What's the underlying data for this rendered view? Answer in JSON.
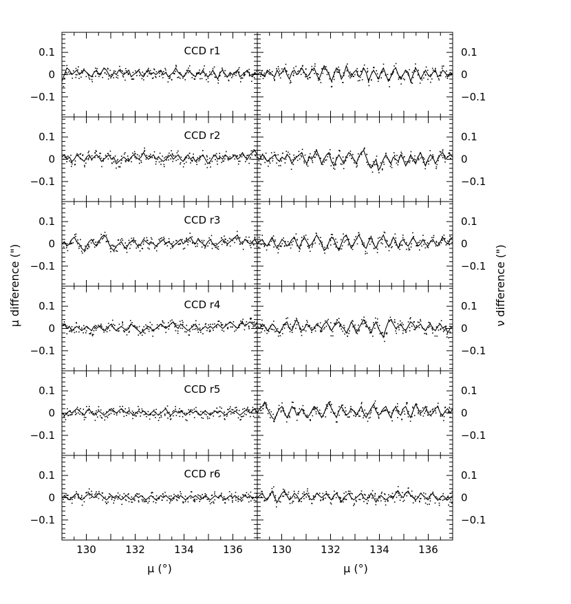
{
  "chart_data": {
    "type": "scatter",
    "xlabel": "μ (°)",
    "ylabel_left": "μ difference (\")",
    "ylabel_right": "ν difference (\")",
    "xlim": [
      129,
      137
    ],
    "ylim": [
      -0.19,
      0.19
    ],
    "xticks": [
      130,
      132,
      134,
      136
    ],
    "xtick_labels": [
      "130",
      "132",
      "134",
      "136"
    ],
    "yticks": [
      0.1,
      0,
      -0.1
    ],
    "ytick_labels": [
      "0.1",
      "0",
      "−0.1"
    ],
    "grid": false,
    "panels": [
      {
        "label": "CCD r1",
        "mu_diff": [
          -0.03,
          0.0,
          0.03,
          0.02,
          0.0,
          0.01,
          0.02,
          0.0,
          0.01,
          0.02,
          0.01,
          0.0,
          -0.01,
          0.01,
          0.02,
          0.0,
          0.01,
          0.03,
          0.02,
          0.0,
          -0.01,
          0.01,
          0.0,
          0.02,
          0.01,
          0.0,
          0.01,
          0.02,
          -0.01,
          0.0,
          0.01,
          0.02,
          0.0,
          -0.01,
          0.01,
          0.02,
          0.0,
          0.01,
          0.0,
          0.01,
          0.02,
          0.0,
          0.01,
          -0.01,
          0.0,
          0.01,
          0.03,
          0.01,
          0.0,
          -0.01,
          0.0,
          0.02,
          0.01,
          0.0,
          -0.01,
          0.01,
          0.0,
          0.02,
          0.0,
          -0.01,
          0.0,
          0.02,
          0.0,
          -0.02,
          0.01,
          0.02,
          0.0,
          -0.01,
          0.01,
          0.0,
          0.01,
          0.02,
          -0.01,
          0.0,
          0.01,
          0.02,
          0.0,
          -0.01,
          0.01,
          0.0
        ],
        "nu_diff": [
          0.0,
          0.01,
          0.0,
          -0.01,
          0.02,
          0.01,
          0.0,
          -0.01,
          0.02,
          0.0,
          0.01,
          0.03,
          0.0,
          -0.02,
          0.01,
          0.02,
          0.0,
          0.01,
          0.03,
          0.01,
          -0.01,
          0.0,
          0.02,
          0.03,
          0.0,
          -0.02,
          0.01,
          0.04,
          0.02,
          0.0,
          -0.03,
          0.0,
          0.03,
          0.02,
          -0.02,
          0.0,
          0.04,
          0.01,
          -0.01,
          0.01,
          0.02,
          -0.01,
          0.0,
          0.03,
          0.01,
          -0.03,
          0.0,
          0.02,
          0.0,
          -0.02,
          0.01,
          0.03,
          0.0,
          -0.03,
          -0.01,
          0.02,
          0.03,
          0.0,
          -0.02,
          0.0,
          0.02,
          0.01,
          -0.03,
          0.0,
          0.03,
          0.01,
          -0.02,
          0.0,
          0.02,
          0.0,
          -0.01,
          0.01,
          0.02,
          -0.01,
          0.0,
          0.02,
          0.01,
          -0.01,
          0.01,
          0.0
        ]
      },
      {
        "label": "CCD r2",
        "mu_diff": [
          0.01,
          0.02,
          0.0,
          0.01,
          -0.01,
          0.0,
          0.02,
          0.01,
          0.0,
          -0.01,
          0.01,
          0.02,
          0.0,
          0.01,
          0.02,
          0.01,
          -0.01,
          0.0,
          0.01,
          0.02,
          0.0,
          0.01,
          -0.02,
          -0.01,
          0.0,
          0.01,
          0.0,
          -0.01,
          0.01,
          0.02,
          0.01,
          0.0,
          0.01,
          0.03,
          0.01,
          0.0,
          0.01,
          0.02,
          0.0,
          0.01,
          0.0,
          -0.01,
          0.0,
          0.01,
          0.02,
          0.0,
          0.01,
          0.02,
          0.0,
          -0.01,
          0.01,
          0.02,
          0.0,
          0.01,
          -0.01,
          0.0,
          0.01,
          0.02,
          0.0,
          -0.02,
          -0.01,
          0.01,
          0.02,
          0.0,
          0.01,
          0.0,
          0.02,
          0.01,
          0.0,
          0.01,
          0.02,
          0.0,
          0.01,
          0.03,
          0.01,
          0.0,
          0.02,
          0.03,
          0.04,
          0.02
        ],
        "nu_diff": [
          0.01,
          0.0,
          0.02,
          0.01,
          -0.01,
          0.0,
          0.01,
          0.02,
          0.0,
          -0.01,
          0.01,
          0.0,
          0.02,
          0.01,
          -0.02,
          0.0,
          0.01,
          0.02,
          0.03,
          0.0,
          -0.02,
          0.01,
          0.0,
          0.02,
          0.04,
          0.01,
          -0.02,
          0.0,
          0.02,
          0.03,
          -0.01,
          -0.03,
          0.0,
          0.02,
          0.0,
          -0.02,
          0.01,
          0.03,
          0.02,
          0.0,
          -0.02,
          0.01,
          0.03,
          0.04,
          0.01,
          -0.02,
          -0.04,
          -0.02,
          0.0,
          -0.05,
          -0.03,
          0.0,
          0.02,
          0.0,
          -0.02,
          0.01,
          0.0,
          -0.01,
          0.02,
          0.0,
          -0.03,
          -0.01,
          0.02,
          0.0,
          -0.02,
          0.01,
          0.03,
          0.0,
          -0.03,
          0.0,
          0.02,
          0.01,
          -0.02,
          0.0,
          0.02,
          0.03,
          0.0,
          0.01,
          0.02,
          0.01
        ]
      },
      {
        "label": "CCD r3",
        "mu_diff": [
          0.0,
          0.01,
          -0.01,
          0.0,
          0.02,
          0.03,
          0.01,
          0.0,
          -0.02,
          -0.03,
          -0.01,
          0.01,
          0.02,
          0.0,
          -0.01,
          0.01,
          0.03,
          0.04,
          0.03,
          0.0,
          -0.02,
          -0.03,
          -0.01,
          0.0,
          0.01,
          -0.01,
          -0.02,
          0.0,
          0.01,
          0.02,
          0.0,
          -0.01,
          0.0,
          0.02,
          0.01,
          0.0,
          0.01,
          0.0,
          -0.01,
          0.0,
          0.01,
          0.02,
          0.0,
          0.01,
          0.0,
          -0.01,
          0.0,
          0.01,
          0.02,
          0.0,
          0.01,
          0.02,
          0.03,
          0.01,
          0.0,
          0.02,
          0.01,
          0.0,
          -0.01,
          0.01,
          0.02,
          0.0,
          -0.01,
          0.0,
          0.01,
          0.02,
          0.01,
          0.0,
          0.01,
          0.02,
          0.03,
          0.04,
          0.01,
          0.0,
          0.02,
          0.01,
          0.0,
          0.01,
          0.02,
          0.0
        ],
        "nu_diff": [
          0.0,
          0.01,
          0.02,
          0.0,
          -0.01,
          0.01,
          0.03,
          0.0,
          -0.02,
          0.0,
          0.02,
          0.01,
          -0.01,
          0.0,
          0.02,
          0.03,
          0.0,
          -0.02,
          0.01,
          0.03,
          0.01,
          -0.01,
          0.0,
          0.02,
          0.04,
          0.02,
          0.0,
          -0.03,
          -0.02,
          0.01,
          0.03,
          0.02,
          -0.01,
          -0.03,
          0.0,
          0.03,
          0.04,
          0.01,
          -0.02,
          0.0,
          0.02,
          0.04,
          0.02,
          -0.01,
          -0.02,
          0.01,
          0.03,
          0.0,
          -0.02,
          0.01,
          0.02,
          0.04,
          0.01,
          -0.01,
          0.0,
          0.03,
          0.01,
          -0.02,
          0.01,
          0.02,
          0.0,
          -0.01,
          0.01,
          0.03,
          0.01,
          -0.01,
          0.0,
          0.02,
          0.0,
          -0.01,
          0.01,
          0.02,
          0.0,
          -0.01,
          0.01,
          0.03,
          0.01,
          0.0,
          0.02,
          0.03
        ]
      },
      {
        "label": "CCD r4",
        "mu_diff": [
          0.01,
          0.02,
          0.0,
          0.01,
          -0.01,
          0.0,
          0.01,
          0.0,
          -0.01,
          0.0,
          0.01,
          0.0,
          -0.01,
          0.01,
          0.0,
          0.01,
          0.0,
          -0.01,
          0.0,
          0.01,
          0.02,
          0.0,
          -0.01,
          0.0,
          0.01,
          0.0,
          -0.01,
          0.0,
          0.02,
          0.01,
          0.0,
          -0.01,
          -0.02,
          -0.01,
          0.0,
          0.01,
          0.0,
          -0.01,
          0.0,
          0.01,
          0.02,
          0.01,
          0.0,
          0.01,
          0.02,
          0.03,
          0.01,
          0.0,
          0.02,
          0.01,
          0.0,
          -0.01,
          0.0,
          0.01,
          0.02,
          0.0,
          -0.01,
          0.0,
          0.01,
          0.0,
          0.01,
          0.0,
          0.01,
          0.02,
          0.01,
          0.0,
          0.01,
          0.02,
          0.03,
          0.02,
          0.01,
          0.0,
          0.02,
          0.03,
          0.01,
          0.02,
          0.03,
          0.02,
          0.01,
          0.03
        ],
        "nu_diff": [
          0.01,
          0.0,
          0.02,
          0.01,
          -0.01,
          0.0,
          0.02,
          0.01,
          -0.01,
          -0.02,
          0.0,
          0.02,
          0.03,
          0.0,
          -0.01,
          0.02,
          0.04,
          0.01,
          -0.01,
          0.0,
          0.02,
          0.01,
          -0.01,
          0.0,
          0.02,
          0.01,
          0.0,
          0.02,
          0.03,
          0.01,
          -0.01,
          0.01,
          0.02,
          0.03,
          0.01,
          0.0,
          -0.02,
          0.0,
          0.03,
          0.01,
          -0.02,
          0.0,
          0.02,
          0.04,
          0.02,
          0.0,
          -0.02,
          0.01,
          0.03,
          0.0,
          -0.02,
          -0.04,
          0.0,
          0.03,
          0.04,
          0.02,
          0.0,
          0.01,
          0.02,
          0.0,
          -0.01,
          0.01,
          0.03,
          0.02,
          0.0,
          0.01,
          0.02,
          0.0,
          -0.01,
          0.01,
          0.02,
          0.0,
          -0.01,
          0.01,
          0.02,
          0.0,
          0.01,
          -0.02,
          0.0,
          0.01
        ]
      },
      {
        "label": "CCD r5",
        "mu_diff": [
          0.0,
          -0.01,
          0.0,
          0.01,
          0.0,
          0.01,
          0.02,
          0.01,
          0.0,
          -0.01,
          0.01,
          0.02,
          0.0,
          -0.01,
          0.0,
          0.01,
          0.0,
          -0.01,
          0.0,
          0.01,
          0.02,
          0.01,
          0.0,
          0.01,
          0.02,
          0.01,
          0.0,
          0.01,
          0.0,
          -0.01,
          0.0,
          0.01,
          0.0,
          0.01,
          0.0,
          -0.01,
          0.0,
          0.01,
          0.0,
          -0.01,
          0.0,
          0.01,
          0.02,
          0.0,
          -0.01,
          0.0,
          0.01,
          0.0,
          0.01,
          0.0,
          -0.01,
          0.0,
          0.01,
          0.0,
          0.01,
          0.0,
          -0.01,
          0.0,
          0.01,
          0.0,
          -0.01,
          0.0,
          0.01,
          0.0,
          0.01,
          0.0,
          -0.01,
          0.0,
          0.01,
          0.0,
          0.01,
          0.0,
          -0.01,
          0.0,
          0.01,
          0.02,
          0.0,
          0.01,
          0.02,
          0.0
        ],
        "nu_diff": [
          0.0,
          0.02,
          0.03,
          0.05,
          0.02,
          0.0,
          -0.02,
          -0.03,
          0.0,
          0.02,
          0.03,
          0.0,
          -0.02,
          0.0,
          0.03,
          0.02,
          -0.01,
          0.0,
          0.02,
          0.0,
          -0.02,
          -0.01,
          0.01,
          0.03,
          0.02,
          0.0,
          -0.02,
          0.0,
          0.03,
          0.05,
          0.02,
          0.0,
          -0.02,
          0.01,
          0.03,
          0.01,
          -0.01,
          0.0,
          0.02,
          0.01,
          -0.01,
          0.01,
          0.03,
          0.0,
          -0.02,
          0.0,
          0.02,
          0.04,
          0.01,
          -0.01,
          0.0,
          0.02,
          0.03,
          0.0,
          -0.02,
          0.01,
          0.03,
          0.0,
          -0.01,
          0.02,
          0.03,
          0.0,
          -0.02,
          0.01,
          0.04,
          0.02,
          0.0,
          0.01,
          0.03,
          0.0,
          -0.01,
          0.0,
          0.02,
          0.03,
          0.0,
          -0.01,
          0.01,
          0.02,
          0.0,
          0.02
        ]
      },
      {
        "label": "CCD r6",
        "mu_diff": [
          0.0,
          0.01,
          0.0,
          -0.01,
          0.0,
          0.01,
          0.02,
          0.0,
          -0.01,
          0.0,
          0.01,
          0.02,
          0.01,
          0.0,
          0.01,
          0.02,
          0.01,
          0.0,
          -0.01,
          0.0,
          0.01,
          0.0,
          0.01,
          0.0,
          -0.01,
          0.0,
          0.01,
          0.0,
          -0.01,
          0.0,
          0.01,
          0.0,
          0.01,
          0.0,
          -0.01,
          0.0,
          0.01,
          0.0,
          -0.01,
          0.0,
          0.01,
          0.0,
          0.01,
          0.0,
          -0.01,
          0.0,
          0.01,
          0.0,
          0.01,
          0.0,
          -0.01,
          0.0,
          0.01,
          0.0,
          0.01,
          0.0,
          -0.01,
          0.0,
          0.01,
          0.0,
          -0.01,
          0.0,
          0.01,
          0.0,
          0.01,
          0.0,
          -0.01,
          0.0,
          0.01,
          0.0,
          0.01,
          0.0,
          -0.01,
          0.0,
          0.01,
          0.0,
          0.01,
          0.0,
          0.0,
          0.01
        ],
        "nu_diff": [
          0.0,
          0.01,
          0.02,
          0.0,
          -0.01,
          0.01,
          0.03,
          0.0,
          -0.02,
          0.0,
          0.02,
          0.03,
          0.01,
          -0.01,
          0.0,
          0.02,
          0.01,
          -0.01,
          0.0,
          0.01,
          0.02,
          0.0,
          -0.01,
          0.0,
          0.02,
          0.01,
          0.0,
          0.01,
          0.02,
          0.0,
          -0.01,
          0.01,
          0.02,
          0.0,
          -0.02,
          0.0,
          0.01,
          0.02,
          0.0,
          -0.01,
          0.0,
          0.01,
          0.02,
          0.0,
          -0.01,
          0.0,
          0.02,
          0.0,
          -0.02,
          0.0,
          0.01,
          0.0,
          -0.01,
          0.0,
          0.01,
          0.0,
          0.02,
          0.03,
          0.01,
          0.0,
          0.02,
          0.03,
          0.01,
          0.0,
          -0.01,
          0.0,
          0.02,
          0.01,
          0.0,
          -0.01,
          0.01,
          0.02,
          0.0,
          -0.01,
          0.0,
          0.01,
          0.0,
          -0.01,
          0.0,
          0.01
        ]
      }
    ]
  }
}
